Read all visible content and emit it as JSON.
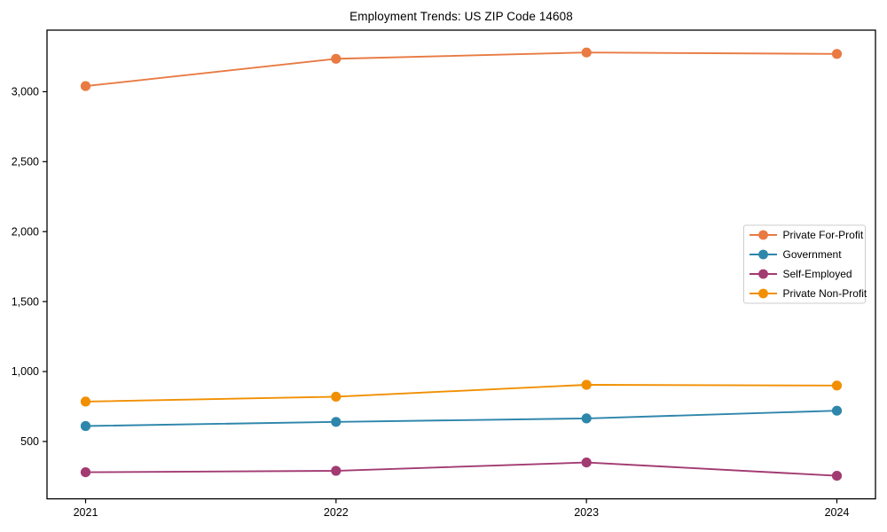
{
  "page": {
    "background": "#ffffff",
    "text_color": "#000000",
    "axis_color": "#000000",
    "legend_border_color": "#cccccc"
  },
  "chart_data": {
    "type": "line",
    "title": "Employment Trends: US ZIP Code 14608",
    "xlabel": "",
    "ylabel": "",
    "categories": [
      "2021",
      "2022",
      "2023",
      "2024"
    ],
    "series": [
      {
        "name": "Private For-Profit",
        "color": "#E87A42",
        "values": [
          3040,
          3235,
          3280,
          3270
        ]
      },
      {
        "name": "Government",
        "color": "#2E86AB",
        "values": [
          610,
          640,
          665,
          720
        ]
      },
      {
        "name": "Self-Employed",
        "color": "#A23B72",
        "values": [
          280,
          290,
          350,
          255
        ]
      },
      {
        "name": "Private Non-Profit",
        "color": "#F18F01",
        "values": [
          785,
          820,
          905,
          900
        ]
      }
    ],
    "ylim": [
      90,
      3440
    ],
    "yticks": [
      500,
      1000,
      1500,
      2000,
      2500,
      3000
    ],
    "ytick_labels": [
      "500",
      "1,000",
      "1,500",
      "2,000",
      "2,500",
      "3,000"
    ],
    "grid": false,
    "frame": true,
    "marker": "circle",
    "legend_position": "center-right"
  }
}
